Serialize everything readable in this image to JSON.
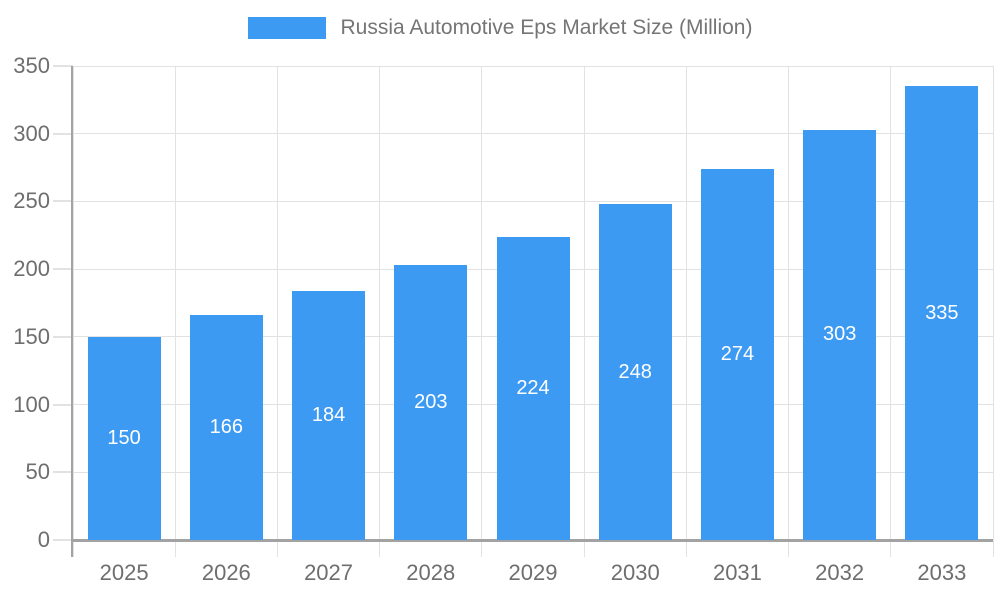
{
  "chart_data": {
    "type": "bar",
    "title": "Russia Automotive Eps Market Size (Million)",
    "categories": [
      "2025",
      "2026",
      "2027",
      "2028",
      "2029",
      "2030",
      "2031",
      "2032",
      "2033"
    ],
    "series": [
      {
        "name": "Russia Automotive Eps Market Size (Million)",
        "values": [
          150,
          166,
          184,
          203,
          224,
          248,
          274,
          303,
          335
        ]
      }
    ],
    "xlabel": "",
    "ylabel": "",
    "ylim": [
      0,
      350
    ],
    "yticks": [
      0,
      50,
      100,
      150,
      200,
      250,
      300,
      350
    ],
    "grid": "on",
    "legend_position": "top-center",
    "value_labels": "inside-center",
    "colors": {
      "bar": "#3d9af2",
      "bar_value_text": "#ffffff",
      "legend_text": "#757575",
      "tick_text": "#6e6e6e",
      "gridline": "#e2e2e2",
      "axis_line": "#a3a3a3",
      "background": "#ffffff"
    }
  }
}
